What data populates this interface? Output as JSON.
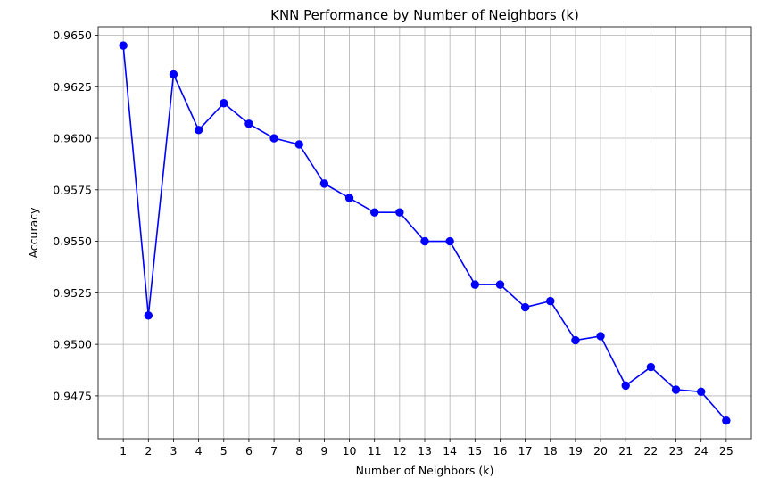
{
  "chart_data": {
    "type": "line",
    "title": "KNN Performance by Number of Neighbors (k)",
    "xlabel": "Number of Neighbors (k)",
    "ylabel": "Accuracy",
    "x": [
      1,
      2,
      3,
      4,
      5,
      6,
      7,
      8,
      9,
      10,
      11,
      12,
      13,
      14,
      15,
      16,
      17,
      18,
      19,
      20,
      21,
      22,
      23,
      24,
      25
    ],
    "series": [
      {
        "values": [
          0.9645,
          0.9514,
          0.9631,
          0.9604,
          0.9617,
          0.9607,
          0.96,
          0.9597,
          0.9578,
          0.9571,
          0.9564,
          0.9564,
          0.955,
          0.955,
          0.9529,
          0.9529,
          0.9518,
          0.9521,
          0.9502,
          0.9504,
          0.948,
          0.9489,
          0.9478,
          0.9477,
          0.9463
        ],
        "color": "#0000ff",
        "marker": "circle"
      }
    ],
    "xticks": [
      "1",
      "2",
      "3",
      "4",
      "5",
      "6",
      "7",
      "8",
      "9",
      "10",
      "11",
      "12",
      "13",
      "14",
      "15",
      "16",
      "17",
      "18",
      "19",
      "20",
      "21",
      "22",
      "23",
      "24",
      "25"
    ],
    "yticks": [
      "0.9475",
      "0.9500",
      "0.9525",
      "0.9550",
      "0.9575",
      "0.9600",
      "0.9625",
      "0.9650"
    ],
    "xlim": [
      0,
      26
    ],
    "ylim": [
      0.94542,
      0.96541
    ],
    "grid": true,
    "grid_color": "#b0b0b0",
    "legend": "none"
  }
}
